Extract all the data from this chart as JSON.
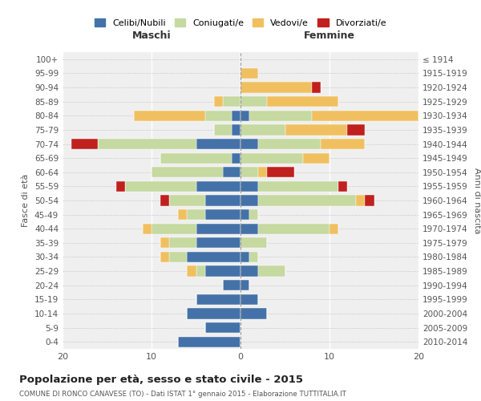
{
  "age_groups": [
    "0-4",
    "5-9",
    "10-14",
    "15-19",
    "20-24",
    "25-29",
    "30-34",
    "35-39",
    "40-44",
    "45-49",
    "50-54",
    "55-59",
    "60-64",
    "65-69",
    "70-74",
    "75-79",
    "80-84",
    "85-89",
    "90-94",
    "95-99",
    "100+"
  ],
  "birth_years": [
    "2010-2014",
    "2005-2009",
    "2000-2004",
    "1995-1999",
    "1990-1994",
    "1985-1989",
    "1980-1984",
    "1975-1979",
    "1970-1974",
    "1965-1969",
    "1960-1964",
    "1955-1959",
    "1950-1954",
    "1945-1949",
    "1940-1944",
    "1935-1939",
    "1930-1934",
    "1925-1929",
    "1920-1924",
    "1915-1919",
    "≤ 1914"
  ],
  "colors": {
    "celibi": "#4472a8",
    "coniugati": "#c5d9a0",
    "vedovi": "#f0c060",
    "divorziati": "#c0201e"
  },
  "maschi": {
    "celibi": [
      7,
      4,
      6,
      5,
      2,
      4,
      6,
      5,
      5,
      4,
      4,
      5,
      2,
      1,
      5,
      1,
      1,
      0,
      0,
      0,
      0
    ],
    "coniugati": [
      0,
      0,
      0,
      0,
      0,
      1,
      2,
      3,
      5,
      2,
      4,
      8,
      8,
      8,
      11,
      2,
      3,
      2,
      0,
      0,
      0
    ],
    "vedovi": [
      0,
      0,
      0,
      0,
      0,
      1,
      1,
      1,
      1,
      1,
      0,
      0,
      0,
      0,
      0,
      0,
      8,
      1,
      0,
      0,
      0
    ],
    "divorziati": [
      0,
      0,
      0,
      0,
      0,
      0,
      0,
      0,
      0,
      0,
      1,
      1,
      0,
      0,
      3,
      0,
      0,
      0,
      0,
      0,
      0
    ]
  },
  "femmine": {
    "celibi": [
      0,
      0,
      3,
      2,
      1,
      2,
      1,
      0,
      2,
      1,
      2,
      2,
      0,
      0,
      2,
      0,
      1,
      0,
      0,
      0,
      0
    ],
    "coniugati": [
      0,
      0,
      0,
      0,
      0,
      3,
      1,
      3,
      8,
      1,
      11,
      9,
      2,
      7,
      7,
      5,
      7,
      3,
      0,
      0,
      0
    ],
    "vedovi": [
      0,
      0,
      0,
      0,
      0,
      0,
      0,
      0,
      1,
      0,
      1,
      0,
      1,
      3,
      5,
      7,
      12,
      8,
      8,
      2,
      0
    ],
    "divorziati": [
      0,
      0,
      0,
      0,
      0,
      0,
      0,
      0,
      0,
      0,
      1,
      1,
      3,
      0,
      0,
      2,
      0,
      0,
      1,
      0,
      0
    ]
  },
  "xlim": 20,
  "title": "Popolazione per età, sesso e stato civile - 2015",
  "subtitle": "COMUNE DI RONCO CANAVESE (TO) - Dati ISTAT 1° gennaio 2015 - Elaborazione TUTTITALIA.IT",
  "ylabel_left": "Fasce di età",
  "ylabel_right": "Anni di nascita",
  "xlabel_left": "Maschi",
  "xlabel_right": "Femmine",
  "legend_labels": [
    "Celibi/Nubili",
    "Coniugati/e",
    "Vedovi/e",
    "Divorziati/e"
  ],
  "bg_color": "#efefef"
}
